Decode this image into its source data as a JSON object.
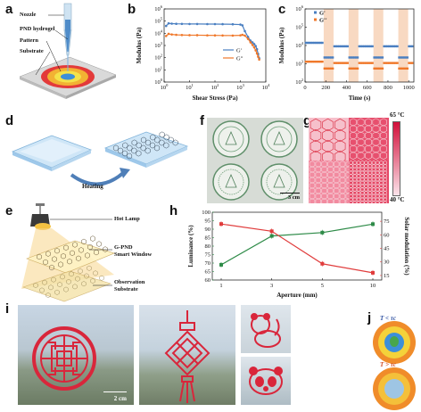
{
  "panels": {
    "a": "a",
    "b": "b",
    "c": "c",
    "d": "d",
    "e": "e",
    "f": "f",
    "g": "g",
    "h": "h",
    "i": "i",
    "j": "j"
  },
  "panel_a": {
    "nozzle": "Nozzle",
    "hydrogel": "PND hydrogel",
    "pattern": "Pattern",
    "substrate": "Substrate"
  },
  "panel_d": {
    "heating": "Heating"
  },
  "panel_e": {
    "lamp": "Hot Lamp",
    "window_1": "G-PND",
    "window_2": "Smart Window",
    "observation": "Observation",
    "substrate": "Substrate"
  },
  "panel_f": {
    "scale": "3 cm"
  },
  "panel_g": {
    "temp_high": "65 °C",
    "temp_low": "40 °C",
    "colorbar_high": "#d1103a",
    "colorbar_low": "#fbe3ea"
  },
  "panel_i": {
    "scale": "2 cm"
  },
  "panel_j": {
    "cond_low": "T < τc",
    "cond_high": "T > τc"
  },
  "colors": {
    "gprime": "#4a7fc1",
    "gdoubleprime": "#f0782a",
    "lum": "#2e8b48",
    "solar": "#e03c3c",
    "shade": "#f8d9c2",
    "print_red": "#d9263b"
  },
  "chart_data": [
    {
      "panel": "b",
      "type": "line",
      "xlabel": "Shear Stress (Pa)",
      "ylabel": "Modulus (Pa)",
      "xscale": "log",
      "yscale": "log",
      "xlim": [
        1,
        10000
      ],
      "ylim": [
        1,
        1000000
      ],
      "xticks": [
        "10^0",
        "10^1",
        "10^2",
        "10^3",
        "10^4"
      ],
      "yticks": [
        "10^0",
        "10^1",
        "10^2",
        "10^3",
        "10^4",
        "10^5",
        "10^6"
      ],
      "series": [
        {
          "name": "G'",
          "x": [
            1.2,
            1.5,
            2,
            3,
            5,
            10,
            20,
            50,
            100,
            200,
            500,
            1000,
            1200,
            1500,
            2000,
            2500,
            3000,
            3500,
            4000,
            4500,
            5000,
            5500
          ],
          "y": [
            40000,
            65000,
            62000,
            60000,
            59000,
            58000,
            58000,
            57000,
            57000,
            56000,
            55000,
            52000,
            45000,
            15000,
            5000,
            2500,
            1800,
            1300,
            900,
            500,
            200,
            90
          ]
        },
        {
          "name": "G''",
          "x": [
            1.2,
            1.5,
            2,
            3,
            5,
            10,
            20,
            50,
            100,
            200,
            500,
            1000,
            1200,
            1500,
            2000,
            2500,
            3000,
            3500,
            4000,
            4500,
            5000,
            5500
          ],
          "y": [
            6000,
            9000,
            8000,
            7500,
            7200,
            7000,
            7000,
            6800,
            6700,
            6600,
            6500,
            6800,
            7500,
            6500,
            3500,
            1800,
            1100,
            700,
            400,
            220,
            120,
            70
          ]
        }
      ],
      "legend": "center-right"
    },
    {
      "panel": "c",
      "type": "scatter",
      "xlabel": "Time (s)",
      "ylabel": "Modulus (Pa)",
      "yscale": "log",
      "xlim": [
        0,
        1050
      ],
      "ylim": [
        100,
        1000000
      ],
      "xticks": [
        0,
        200,
        400,
        600,
        800,
        1000
      ],
      "yticks": [
        "10^2",
        "10^3",
        "10^4",
        "10^5",
        "10^6"
      ],
      "shaded_intervals": [
        [
          180,
          275
        ],
        [
          420,
          515
        ],
        [
          660,
          755
        ],
        [
          900,
          995
        ]
      ],
      "series": [
        {
          "name": "G'",
          "segments": [
            [
              0,
              180,
              14000
            ],
            [
              180,
              275,
              2200
            ],
            [
              275,
              420,
              9000
            ],
            [
              420,
              515,
              2200
            ],
            [
              515,
              660,
              9000
            ],
            [
              660,
              755,
              2200
            ],
            [
              755,
              900,
              9000
            ],
            [
              900,
              995,
              2200
            ],
            [
              995,
              1050,
              9000
            ]
          ]
        },
        {
          "name": "G''",
          "segments": [
            [
              0,
              180,
              1300
            ],
            [
              180,
              275,
              550
            ],
            [
              275,
              420,
              1100
            ],
            [
              420,
              515,
              550
            ],
            [
              515,
              660,
              1100
            ],
            [
              660,
              755,
              550
            ],
            [
              755,
              900,
              1100
            ],
            [
              900,
              995,
              550
            ],
            [
              995,
              1050,
              1100
            ]
          ]
        }
      ],
      "legend": "top-left"
    },
    {
      "panel": "h",
      "type": "line",
      "xlabel": "Aperture (mm)",
      "ylabel": "Luminance (%)",
      "y2label": "Solar modulation (%)",
      "categories": [
        "1",
        "3",
        "5",
        "10"
      ],
      "ylim": [
        60,
        100
      ],
      "y2lim": [
        10,
        85
      ],
      "yticks": [
        60,
        65,
        70,
        75,
        80,
        85,
        90,
        95,
        100
      ],
      "y2ticks": [
        15,
        30,
        45,
        60,
        75
      ],
      "series": [
        {
          "name": "Luminance",
          "axis": "left",
          "values": [
            69,
            86,
            88,
            93
          ]
        },
        {
          "name": "Solar modulation",
          "axis": "right",
          "values": [
            72,
            64,
            28,
            18
          ]
        }
      ]
    }
  ]
}
